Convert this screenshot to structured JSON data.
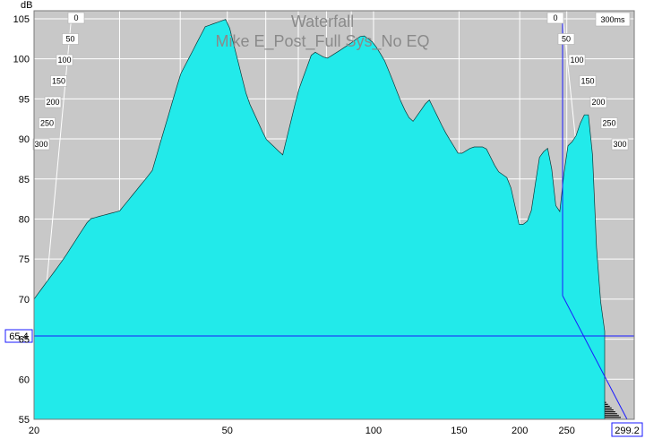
{
  "window": {
    "title": "Waterfall",
    "subtitle": "Mike E_Post_Full Sys_No EQ"
  },
  "cursor": {
    "y_readout": "65.4",
    "x_readout": "299.2"
  },
  "colors": {
    "plot_background": "#c8c8c8",
    "curve_fill": "#22eaea",
    "curve_stroke": "#0a3a3a",
    "cursor_line": "#1a1aff",
    "floor_stripe": "#000000"
  },
  "chart_data": {
    "type": "area",
    "style": "waterfall (3D stacked spectral decay)",
    "title": "Waterfall",
    "subtitle": "Mike E_Post_Full Sys_No EQ",
    "xlabel": "",
    "ylabel": "dB",
    "zlabel": "ms",
    "xlim": [
      20,
      299.2
    ],
    "ylim": [
      55,
      106
    ],
    "zlim": [
      0,
      300
    ],
    "x_ticks": [
      "20",
      "50",
      "100",
      "150",
      "200",
      "250"
    ],
    "y_ticks": [
      "55",
      "60",
      "65",
      "70",
      "75",
      "80",
      "85",
      "90",
      "95",
      "100",
      "105"
    ],
    "z_ticks_left": [
      "0",
      "50",
      "100",
      "150",
      "200",
      "250",
      "300"
    ],
    "z_ticks_right": [
      "0",
      "50",
      "100",
      "150",
      "200",
      "250",
      "300"
    ],
    "z_unit_label": "300ms",
    "grid": true,
    "cursor": {
      "x": 299.2,
      "y": 65.4
    },
    "front_slice": {
      "time_ms": 0,
      "x": [
        20,
        23,
        26,
        30,
        35,
        40,
        45,
        50,
        55,
        60,
        65,
        70,
        75,
        80,
        85,
        90,
        95,
        100,
        105,
        110,
        115,
        120,
        130,
        140,
        150,
        160,
        170,
        180,
        190,
        200,
        210,
        220,
        230,
        240,
        250,
        260,
        270,
        280,
        290,
        299
      ],
      "y": [
        70,
        75,
        80,
        81,
        86,
        98,
        104,
        105,
        95,
        90,
        88,
        96,
        101,
        100,
        101,
        102,
        103,
        102,
        100,
        97,
        94,
        92,
        95,
        91,
        88,
        89,
        89,
        86,
        85,
        79,
        80,
        88,
        89,
        79,
        89,
        90,
        93,
        93,
        72,
        66
      ]
    }
  }
}
